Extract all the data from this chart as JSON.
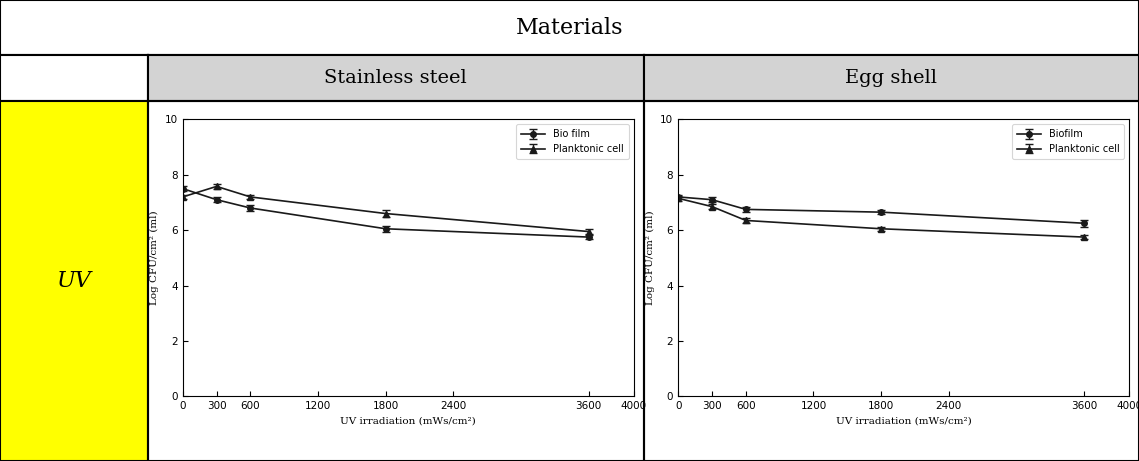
{
  "title": "Materials",
  "col1_label": "Stainless steel",
  "col2_label": "Egg shell",
  "row_label": "UV",
  "xlabel": "UV irradiation (mWs/cm²)",
  "ylabel": "Log CFU/cm² (ml)",
  "x_values": [
    0,
    300,
    600,
    1800,
    3600
  ],
  "ss_biofilm_y": [
    7.5,
    7.1,
    6.8,
    6.05,
    5.75
  ],
  "ss_biofilm_err": [
    0.1,
    0.08,
    0.1,
    0.1,
    0.07
  ],
  "ss_planktonic_y": [
    7.2,
    7.58,
    7.2,
    6.6,
    5.95
  ],
  "ss_planktonic_err": [
    0.08,
    0.08,
    0.08,
    0.12,
    0.08
  ],
  "es_biofilm_y": [
    7.2,
    7.1,
    6.75,
    6.65,
    6.25
  ],
  "es_biofilm_err": [
    0.08,
    0.1,
    0.1,
    0.08,
    0.12
  ],
  "es_planktonic_y": [
    7.15,
    6.85,
    6.35,
    6.05,
    5.75
  ],
  "es_planktonic_err": [
    0.08,
    0.08,
    0.1,
    0.07,
    0.06
  ],
  "ylim": [
    0,
    10
  ],
  "xlim": [
    0,
    4000
  ],
  "xticks": [
    0,
    300,
    600,
    1200,
    1800,
    2400,
    3600,
    4000
  ],
  "yticks": [
    0,
    2,
    4,
    6,
    8,
    10
  ],
  "line_color": "#1a1a1a",
  "background_color": "#ffffff",
  "row_header_color": "#ffff00",
  "col_header_color": "#d3d3d3",
  "legend1_biofilm": "Bio film",
  "legend1_planktonic": "Planktonic cell",
  "legend2_biofilm": "Biofilm",
  "legend2_planktonic": "Planktonic cell"
}
